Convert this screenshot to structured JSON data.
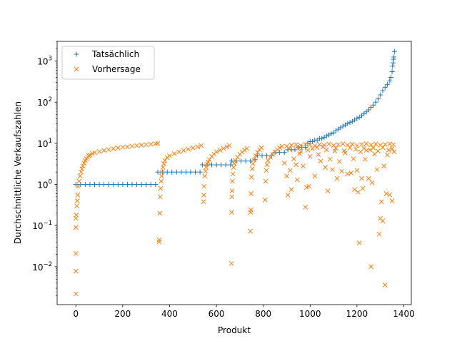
{
  "chart_data": {
    "type": "scatter",
    "title": "",
    "xlabel": "Produkt",
    "ylabel": "Durchschnittliche Verkaufszahlen",
    "xlim": [
      -80,
      1432
    ],
    "ylim": [
      0.0012,
      3000
    ],
    "yscale": "log",
    "x_ticks": [
      0,
      200,
      400,
      600,
      800,
      1000,
      1200,
      1400
    ],
    "y_ticks": [
      {
        "value": 0.01,
        "base": "10",
        "exp": "−2"
      },
      {
        "value": 0.1,
        "base": "10",
        "exp": "−1"
      },
      {
        "value": 1,
        "base": "10",
        "exp": "0"
      },
      {
        "value": 10,
        "base": "10",
        "exp": "1"
      },
      {
        "value": 100,
        "base": "10",
        "exp": "2"
      },
      {
        "value": 1000,
        "base": "10",
        "exp": "3"
      }
    ],
    "grid": false,
    "legend": {
      "position": "top-left"
    },
    "series": [
      {
        "name": "Tatsächlich",
        "marker": "+",
        "color": "#1f77b4",
        "points": [
          [
            0,
            1
          ],
          [
            20,
            1
          ],
          [
            40,
            1
          ],
          [
            60,
            1
          ],
          [
            80,
            1
          ],
          [
            100,
            1
          ],
          [
            120,
            1
          ],
          [
            140,
            1
          ],
          [
            160,
            1
          ],
          [
            180,
            1
          ],
          [
            200,
            1
          ],
          [
            220,
            1
          ],
          [
            240,
            1
          ],
          [
            260,
            1
          ],
          [
            280,
            1
          ],
          [
            300,
            1
          ],
          [
            320,
            1
          ],
          [
            340,
            1
          ],
          [
            350,
            2
          ],
          [
            370,
            2
          ],
          [
            390,
            2
          ],
          [
            410,
            2
          ],
          [
            430,
            2
          ],
          [
            450,
            2
          ],
          [
            470,
            2
          ],
          [
            490,
            2
          ],
          [
            510,
            2
          ],
          [
            530,
            2
          ],
          [
            540,
            3
          ],
          [
            560,
            3
          ],
          [
            580,
            3
          ],
          [
            600,
            3
          ],
          [
            620,
            3
          ],
          [
            640,
            3
          ],
          [
            660,
            3
          ],
          [
            665,
            3.7
          ],
          [
            685,
            3.7
          ],
          [
            705,
            3.7
          ],
          [
            725,
            3.7
          ],
          [
            745,
            3.7
          ],
          [
            765,
            4
          ],
          [
            775,
            5
          ],
          [
            795,
            5
          ],
          [
            815,
            5
          ],
          [
            835,
            5
          ],
          [
            850,
            6
          ],
          [
            870,
            6
          ],
          [
            890,
            6
          ],
          [
            905,
            7
          ],
          [
            920,
            7
          ],
          [
            935,
            7
          ],
          [
            950,
            8
          ],
          [
            965,
            8
          ],
          [
            980,
            8
          ],
          [
            990,
            10
          ],
          [
            1000,
            11
          ],
          [
            1010,
            11
          ],
          [
            1020,
            12
          ],
          [
            1030,
            12
          ],
          [
            1040,
            13
          ],
          [
            1050,
            13
          ],
          [
            1060,
            14
          ],
          [
            1070,
            15
          ],
          [
            1080,
            16
          ],
          [
            1090,
            17
          ],
          [
            1100,
            18
          ],
          [
            1110,
            20
          ],
          [
            1120,
            22
          ],
          [
            1130,
            24
          ],
          [
            1140,
            26
          ],
          [
            1150,
            28
          ],
          [
            1160,
            30
          ],
          [
            1170,
            32
          ],
          [
            1180,
            34
          ],
          [
            1190,
            37
          ],
          [
            1200,
            40
          ],
          [
            1210,
            43
          ],
          [
            1220,
            47
          ],
          [
            1230,
            52
          ],
          [
            1240,
            58
          ],
          [
            1250,
            65
          ],
          [
            1260,
            75
          ],
          [
            1270,
            85
          ],
          [
            1280,
            100
          ],
          [
            1290,
            120
          ],
          [
            1300,
            150
          ],
          [
            1310,
            190
          ],
          [
            1320,
            230
          ],
          [
            1330,
            270
          ],
          [
            1340,
            330
          ],
          [
            1345,
            400
          ],
          [
            1350,
            550
          ],
          [
            1352,
            750
          ],
          [
            1354,
            900
          ],
          [
            1356,
            1100
          ],
          [
            1358,
            1250
          ],
          [
            1360,
            1700
          ]
        ]
      },
      {
        "name": "Vorhersage",
        "marker": "x",
        "color": "#ff7f0e",
        "points": [
          [
            0,
            0.0022
          ],
          [
            0,
            0.0078
          ],
          [
            0,
            0.021
          ],
          [
            0,
            0.09
          ],
          [
            0,
            0.15
          ],
          [
            2,
            0.18
          ],
          [
            4,
            0.3
          ],
          [
            6,
            0.4
          ],
          [
            8,
            0.55
          ],
          [
            10,
            0.9
          ],
          [
            14,
            1.2
          ],
          [
            18,
            1.6
          ],
          [
            22,
            2
          ],
          [
            26,
            2.4
          ],
          [
            30,
            2.8
          ],
          [
            35,
            3.3
          ],
          [
            40,
            3.8
          ],
          [
            45,
            4.2
          ],
          [
            50,
            4.6
          ],
          [
            55,
            5
          ],
          [
            60,
            5.2
          ],
          [
            70,
            5.6
          ],
          [
            80,
            5.9
          ],
          [
            100,
            6.3
          ],
          [
            120,
            6.7
          ],
          [
            140,
            7
          ],
          [
            160,
            7.4
          ],
          [
            180,
            7.7
          ],
          [
            200,
            8
          ],
          [
            220,
            8.2
          ],
          [
            240,
            8.5
          ],
          [
            260,
            8.8
          ],
          [
            280,
            9
          ],
          [
            300,
            9.3
          ],
          [
            320,
            9.5
          ],
          [
            340,
            9.7
          ],
          [
            350,
            9.9
          ],
          [
            355,
            0.04
          ],
          [
            356,
            0.045
          ],
          [
            358,
            0.2
          ],
          [
            360,
            0.5
          ],
          [
            362,
            0.8
          ],
          [
            364,
            1.2
          ],
          [
            366,
            1.6
          ],
          [
            368,
            2
          ],
          [
            372,
            2.6
          ],
          [
            376,
            3.2
          ],
          [
            380,
            3.8
          ],
          [
            390,
            4.5
          ],
          [
            400,
            5
          ],
          [
            420,
            5.6
          ],
          [
            440,
            6.2
          ],
          [
            460,
            6.7
          ],
          [
            480,
            7.2
          ],
          [
            500,
            7.7
          ],
          [
            520,
            8.2
          ],
          [
            535,
            8.8
          ],
          [
            545,
            0.38
          ],
          [
            546,
            0.55
          ],
          [
            547,
            0.9
          ],
          [
            550,
            1.6
          ],
          [
            553,
            2.1
          ],
          [
            556,
            2.6
          ],
          [
            560,
            3.1
          ],
          [
            565,
            3.5
          ],
          [
            570,
            4
          ],
          [
            580,
            4.8
          ],
          [
            590,
            5.5
          ],
          [
            600,
            6.2
          ],
          [
            615,
            6.8
          ],
          [
            630,
            7.5
          ],
          [
            645,
            8.2
          ],
          [
            655,
            8.8
          ],
          [
            664,
            0.012
          ],
          [
            665,
            0.21
          ],
          [
            666,
            0.5
          ],
          [
            667,
            0.7
          ],
          [
            668,
            1.2
          ],
          [
            670,
            1.8
          ],
          [
            673,
            2.6
          ],
          [
            676,
            3.2
          ],
          [
            680,
            3.8
          ],
          [
            690,
            4.6
          ],
          [
            700,
            5.4
          ],
          [
            710,
            6.1
          ],
          [
            720,
            6.8
          ],
          [
            730,
            7.5
          ],
          [
            745,
            0.073
          ],
          [
            746,
            0.21
          ],
          [
            747,
            0.24
          ],
          [
            748,
            0.6
          ],
          [
            750,
            1.5
          ],
          [
            753,
            2.4
          ],
          [
            756,
            3.2
          ],
          [
            760,
            4
          ],
          [
            768,
            5
          ],
          [
            776,
            6
          ],
          [
            784,
            7
          ],
          [
            792,
            7.8
          ],
          [
            808,
            0.42
          ],
          [
            810,
            1.2
          ],
          [
            813,
            2.2
          ],
          [
            816,
            3
          ],
          [
            820,
            3.8
          ],
          [
            830,
            4.6
          ],
          [
            840,
            5.4
          ],
          [
            850,
            6.2
          ],
          [
            860,
            7
          ],
          [
            870,
            7.8
          ],
          [
            880,
            8.4
          ],
          [
            890,
            3.3
          ],
          [
            900,
            1.6
          ],
          [
            905,
            0.55
          ],
          [
            915,
            2.2
          ],
          [
            920,
            0.75
          ],
          [
            930,
            4.2
          ],
          [
            940,
            3
          ],
          [
            945,
            1.3
          ],
          [
            955,
            5.6
          ],
          [
            960,
            6.3
          ],
          [
            970,
            2.8
          ],
          [
            980,
            0.28
          ],
          [
            985,
            0.85
          ],
          [
            995,
            0.9
          ],
          [
            1000,
            4.8
          ],
          [
            1010,
            7.4
          ],
          [
            1020,
            1.6
          ],
          [
            1035,
            5.3
          ],
          [
            1045,
            3.7
          ],
          [
            1055,
            8.2
          ],
          [
            1065,
            2.6
          ],
          [
            1075,
            0.7
          ],
          [
            1085,
            4.1
          ],
          [
            1095,
            2.3
          ],
          [
            1105,
            6.5
          ],
          [
            1115,
            1.4
          ],
          [
            1125,
            3.6
          ],
          [
            1135,
            2.1
          ],
          [
            1150,
            5.8
          ],
          [
            1160,
            1.8
          ],
          [
            1175,
            1.9
          ],
          [
            1185,
            4.2
          ],
          [
            1190,
            0.75
          ],
          [
            1200,
            2.2
          ],
          [
            1205,
            0.65
          ],
          [
            1210,
            0.038
          ],
          [
            1220,
            1.4
          ],
          [
            1225,
            0.8
          ],
          [
            1235,
            4.1
          ],
          [
            1240,
            6.7
          ],
          [
            1250,
            1.4
          ],
          [
            1260,
            0.01
          ],
          [
            1265,
            1.1
          ],
          [
            1275,
            5.5
          ],
          [
            1285,
            2.3
          ],
          [
            1295,
            0.062
          ],
          [
            1300,
            0.15
          ],
          [
            1305,
            0.38
          ],
          [
            1310,
            0.13
          ],
          [
            1315,
            2.8
          ],
          [
            1320,
            0.0036
          ],
          [
            1325,
            0.6
          ],
          [
            1330,
            5.2
          ],
          [
            1340,
            0.56
          ],
          [
            1350,
            0.4
          ],
          [
            900,
            8.5
          ],
          [
            920,
            9
          ],
          [
            940,
            9.3
          ],
          [
            960,
            8.8
          ],
          [
            980,
            9.5
          ],
          [
            1000,
            9.2
          ],
          [
            1020,
            8.7
          ],
          [
            1040,
            9.4
          ],
          [
            1060,
            9
          ],
          [
            1080,
            9.6
          ],
          [
            1100,
            8.9
          ],
          [
            1120,
            9.3
          ],
          [
            1140,
            9.7
          ],
          [
            1160,
            9.1
          ],
          [
            1180,
            9.5
          ],
          [
            1200,
            8.8
          ],
          [
            1220,
            9.4
          ],
          [
            1240,
            9.8
          ],
          [
            1260,
            9.2
          ],
          [
            1280,
            9.6
          ],
          [
            1300,
            9
          ],
          [
            1320,
            9.4
          ],
          [
            1340,
            9.7
          ],
          [
            1355,
            9.3
          ],
          [
            910,
            7.4
          ],
          [
            950,
            7.8
          ],
          [
            990,
            6.8
          ],
          [
            1030,
            7.9
          ],
          [
            1070,
            6.9
          ],
          [
            1110,
            7.6
          ],
          [
            1145,
            6.6
          ],
          [
            1170,
            7.8
          ],
          [
            1195,
            7.1
          ],
          [
            1215,
            6.2
          ],
          [
            1230,
            7.5
          ],
          [
            1255,
            6.9
          ],
          [
            1270,
            7.7
          ],
          [
            1290,
            6.5
          ],
          [
            1310,
            7.9
          ],
          [
            1335,
            6.8
          ],
          [
            1350,
            7.4
          ],
          [
            1358,
            6.2
          ]
        ]
      }
    ]
  }
}
